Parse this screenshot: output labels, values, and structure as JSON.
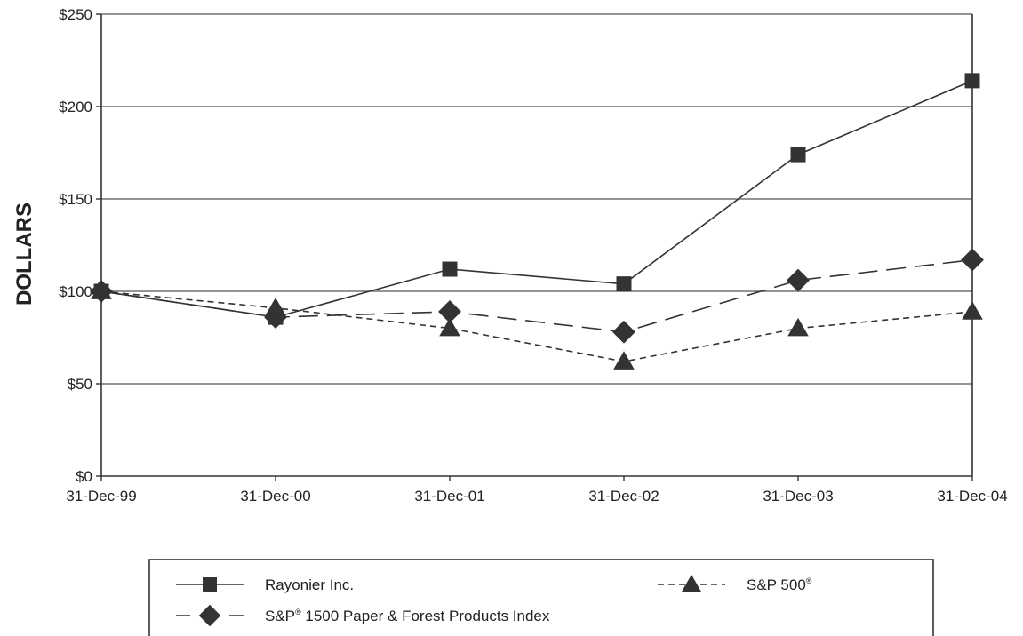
{
  "chart_data": {
    "type": "line",
    "ylabel": "DOLLARS",
    "xlabel": "",
    "categories": [
      "31-Dec-99",
      "31-Dec-00",
      "31-Dec-01",
      "31-Dec-02",
      "31-Dec-03",
      "31-Dec-04"
    ],
    "y_ticks": [
      "$0",
      "$50",
      "$100",
      "$150",
      "$200",
      "$250"
    ],
    "ylim": [
      0,
      250
    ],
    "grid": "horizontal",
    "legend_position": "bottom",
    "series": [
      {
        "key": "rayonier",
        "name": "Rayonier Inc.",
        "values": [
          100,
          86,
          112,
          104,
          174,
          214
        ],
        "marker": "square",
        "line": "solid",
        "color": "#333333"
      },
      {
        "key": "sp1500",
        "name": "S&P",
        "name_sup": "®",
        "name_rest": " 1500 Paper & Forest Products Index",
        "values": [
          100,
          86,
          89,
          78,
          106,
          117
        ],
        "marker": "diamond",
        "line": "long-dash",
        "color": "#333333"
      },
      {
        "key": "sp500",
        "name": "S&P 500",
        "name_sup": "®",
        "values": [
          100,
          91,
          80,
          62,
          80,
          89
        ],
        "marker": "triangle",
        "line": "short-dash",
        "color": "#333333"
      }
    ]
  }
}
